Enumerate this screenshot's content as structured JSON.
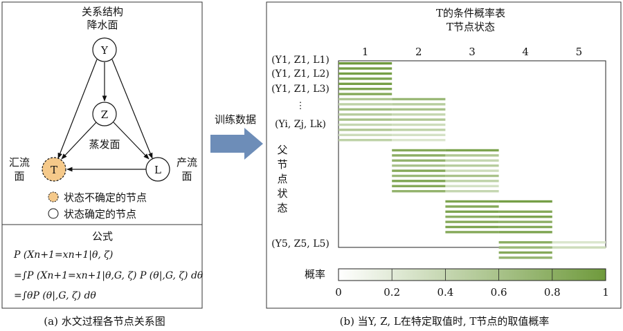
{
  "left": {
    "title_line1": "关系结构",
    "title_line2": "降水面",
    "node_y": "Y",
    "node_z": "Z",
    "node_t": "T",
    "node_l": "L",
    "label_evap": "蒸发面",
    "label_confluence_1": "汇流",
    "label_confluence_2": "面",
    "label_runoff_1": "产流",
    "label_runoff_2": "面",
    "legend_uncertain": "状态不确定的节点",
    "legend_certain": "状态确定的节点",
    "formula_title": "公式",
    "formula_1": "P (Xn+1=xn+1|θ, ζ)",
    "formula_2": "=∫P (Xn+1=xn+1|θ,G, ζ) P (θ|,G, ζ) dθ",
    "formula_3": "=∫θP (θ|,G, ζ) dθ",
    "caption": "(a) 水文过程各节点关系图"
  },
  "arrow_label": "训练数据",
  "right": {
    "title": "T的条件概率表",
    "col_header": "T节点状态",
    "columns": [
      "1",
      "2",
      "3",
      "4",
      "5"
    ],
    "row_labels": [
      "(Y1, Z1, L1)",
      "(Y1, Z1, L2)",
      "(Y1, Z1, L3)",
      "⋮",
      "(Yi, Zj, Lk)",
      "(Y5, Z5, L5)"
    ],
    "parent_label": [
      "父",
      "节",
      "点",
      "状",
      "态"
    ],
    "colorbar_label": "概率",
    "colorbar_ticks": [
      "0",
      "0.2",
      "0.4",
      "0.6",
      "0.8",
      "1"
    ],
    "caption": "(b) 当Y, Z, L在特定取值时, T节点的取值概率",
    "colors": {
      "low": "#ffffff",
      "high": "#6f9a3c"
    },
    "segments": [
      {
        "c": 1,
        "r": 0,
        "p": 1.0
      },
      {
        "c": 1,
        "r": 1,
        "p": 0.95
      },
      {
        "c": 1,
        "r": 2,
        "p": 0.95
      },
      {
        "c": 1,
        "r": 3,
        "p": 0.9
      },
      {
        "c": 1,
        "r": 4,
        "p": 0.95
      },
      {
        "c": 1,
        "r": 5,
        "p": 0.9
      },
      {
        "c": 1,
        "r": 6,
        "p": 0.85
      },
      {
        "c": 1,
        "r": 7,
        "p": 0.55
      },
      {
        "c": 1,
        "r": 8,
        "p": 0.45
      },
      {
        "c": 1,
        "r": 9,
        "p": 0.65
      },
      {
        "c": 1,
        "r": 10,
        "p": 0.5
      },
      {
        "c": 1,
        "r": 11,
        "p": 0.6
      },
      {
        "c": 1,
        "r": 12,
        "p": 0.4
      },
      {
        "c": 1,
        "r": 13,
        "p": 0.55
      },
      {
        "c": 1,
        "r": 14,
        "p": 0.35
      },
      {
        "c": 1,
        "r": 15,
        "p": 0.45
      },
      {
        "c": 2,
        "r": 7,
        "p": 0.7
      },
      {
        "c": 2,
        "r": 8,
        "p": 0.5
      },
      {
        "c": 2,
        "r": 9,
        "p": 0.6
      },
      {
        "c": 2,
        "r": 10,
        "p": 0.4
      },
      {
        "c": 2,
        "r": 11,
        "p": 0.55
      },
      {
        "c": 2,
        "r": 12,
        "p": 0.35
      },
      {
        "c": 2,
        "r": 13,
        "p": 0.45
      },
      {
        "c": 2,
        "r": 14,
        "p": 0.3
      },
      {
        "c": 2,
        "r": 15,
        "p": 0.25
      },
      {
        "c": 2,
        "r": 17,
        "p": 0.85
      },
      {
        "c": 2,
        "r": 18,
        "p": 0.8
      },
      {
        "c": 2,
        "r": 19,
        "p": 0.75
      },
      {
        "c": 2,
        "r": 20,
        "p": 0.6
      },
      {
        "c": 2,
        "r": 21,
        "p": 0.85
      },
      {
        "c": 2,
        "r": 22,
        "p": 0.7
      },
      {
        "c": 2,
        "r": 23,
        "p": 0.9
      },
      {
        "c": 2,
        "r": 24,
        "p": 0.85
      },
      {
        "c": 2,
        "r": 25,
        "p": 0.75
      },
      {
        "c": 3,
        "r": 17,
        "p": 0.9
      },
      {
        "c": 3,
        "r": 18,
        "p": 0.55
      },
      {
        "c": 3,
        "r": 19,
        "p": 0.4
      },
      {
        "c": 3,
        "r": 20,
        "p": 0.5
      },
      {
        "c": 3,
        "r": 21,
        "p": 0.35
      },
      {
        "c": 3,
        "r": 22,
        "p": 0.6
      },
      {
        "c": 3,
        "r": 23,
        "p": 0.45
      },
      {
        "c": 3,
        "r": 24,
        "p": 0.3
      },
      {
        "c": 3,
        "r": 25,
        "p": 0.4
      },
      {
        "c": 3,
        "r": 27,
        "p": 0.9
      },
      {
        "c": 3,
        "r": 28,
        "p": 0.85
      },
      {
        "c": 3,
        "r": 29,
        "p": 0.9
      },
      {
        "c": 3,
        "r": 30,
        "p": 0.8
      },
      {
        "c": 3,
        "r": 31,
        "p": 0.85
      },
      {
        "c": 3,
        "r": 32,
        "p": 0.9
      },
      {
        "c": 3,
        "r": 33,
        "p": 0.85
      },
      {
        "c": 4,
        "r": 27,
        "p": 0.95
      },
      {
        "c": 4,
        "r": 29,
        "p": 0.85
      },
      {
        "c": 4,
        "r": 30,
        "p": 0.9
      },
      {
        "c": 4,
        "r": 31,
        "p": 0.8
      },
      {
        "c": 4,
        "r": 32,
        "p": 0.85
      },
      {
        "c": 4,
        "r": 33,
        "p": 0.9
      },
      {
        "c": 4,
        "r": 35,
        "p": 0.8
      },
      {
        "c": 4,
        "r": 36,
        "p": 0.7
      },
      {
        "c": 4,
        "r": 37,
        "p": 0.85
      },
      {
        "c": 4,
        "r": 38,
        "p": 0.75
      },
      {
        "c": 5,
        "r": 35,
        "p": 0.25
      },
      {
        "c": 5,
        "r": 36,
        "p": 0.35
      }
    ]
  }
}
